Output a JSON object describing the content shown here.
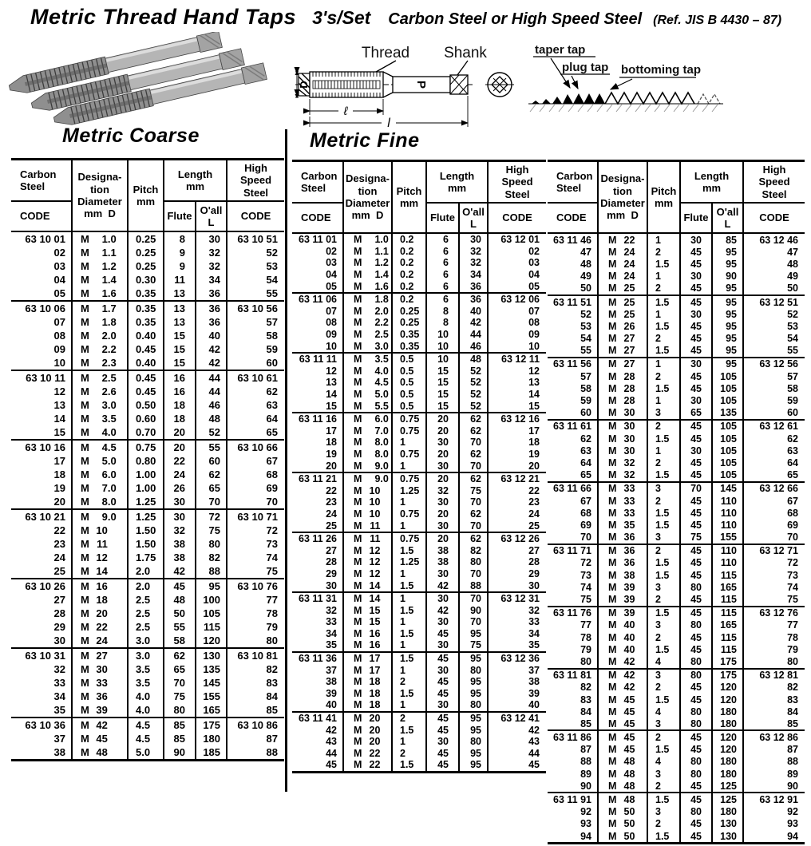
{
  "page": {
    "title": "Metric Thread Hand Taps",
    "set_label": "3's/Set",
    "materials": "Carbon Steel or  High Speed Steel",
    "reference": "(Ref. JIS B 4430 – 87)"
  },
  "columns": {
    "carbon": "Carbon\nSteel",
    "code": "CODE",
    "designation": "Designa-\ntion\nDiameter\nmm  D",
    "pitch": "Pitch\nmm",
    "length": "Length\nmm",
    "flute": "Flute",
    "oall": "O'all\nL",
    "hss": "High\nSpeed\nSteel"
  },
  "diagram": {
    "thread": "Thread",
    "shank": "Shank",
    "dim_d": "D",
    "dim_p": "P",
    "dim_thread_length": "ℓ",
    "dim_overall_length": "l"
  },
  "tap_types": {
    "taper": "taper tap",
    "plug": "plug tap",
    "bottoming": "bottoming tap"
  },
  "sections": {
    "coarse": {
      "heading": "Metric Coarse",
      "groups": [
        [
          [
            "63 10 01",
            "1.0",
            "0.25",
            "8",
            "30",
            "63 10 51"
          ],
          [
            "02",
            "1.1",
            "0.25",
            "9",
            "32",
            "52"
          ],
          [
            "03",
            "1.2",
            "0.25",
            "9",
            "32",
            "53"
          ],
          [
            "04",
            "1.4",
            "0.30",
            "11",
            "34",
            "54"
          ],
          [
            "05",
            "1.6",
            "0.35",
            "13",
            "36",
            "55"
          ]
        ],
        [
          [
            "63 10 06",
            "1.7",
            "0.35",
            "13",
            "36",
            "63 10 56"
          ],
          [
            "07",
            "1.8",
            "0.35",
            "13",
            "36",
            "57"
          ],
          [
            "08",
            "2.0",
            "0.40",
            "15",
            "40",
            "58"
          ],
          [
            "09",
            "2.2",
            "0.45",
            "15",
            "42",
            "59"
          ],
          [
            "10",
            "2.3",
            "0.40",
            "15",
            "42",
            "60"
          ]
        ],
        [
          [
            "63 10 11",
            "2.5",
            "0.45",
            "16",
            "44",
            "63 10 61"
          ],
          [
            "12",
            "2.6",
            "0.45",
            "16",
            "44",
            "62"
          ],
          [
            "13",
            "3.0",
            "0.50",
            "18",
            "46",
            "63"
          ],
          [
            "14",
            "3.5",
            "0.60",
            "18",
            "48",
            "64"
          ],
          [
            "15",
            "4.0",
            "0.70",
            "20",
            "52",
            "65"
          ]
        ],
        [
          [
            "63 10 16",
            "4.5",
            "0.75",
            "20",
            "55",
            "63 10 66"
          ],
          [
            "17",
            "5.0",
            "0.80",
            "22",
            "60",
            "67"
          ],
          [
            "18",
            "6.0",
            "1.00",
            "24",
            "62",
            "68"
          ],
          [
            "19",
            "7.0",
            "1.00",
            "26",
            "65",
            "69"
          ],
          [
            "20",
            "8.0",
            "1.25",
            "30",
            "70",
            "70"
          ]
        ],
        [
          [
            "63 10 21",
            "9.0",
            "1.25",
            "30",
            "72",
            "63 10 71"
          ],
          [
            "22",
            "10",
            "1.50",
            "32",
            "75",
            "72"
          ],
          [
            "23",
            "11",
            "1.50",
            "38",
            "80",
            "73"
          ],
          [
            "24",
            "12",
            "1.75",
            "38",
            "82",
            "74"
          ],
          [
            "25",
            "14",
            "2.0",
            "42",
            "88",
            "75"
          ]
        ],
        [
          [
            "63 10 26",
            "16",
            "2.0",
            "45",
            "95",
            "63 10 76"
          ],
          [
            "27",
            "18",
            "2.5",
            "48",
            "100",
            "77"
          ],
          [
            "28",
            "20",
            "2.5",
            "50",
            "105",
            "78"
          ],
          [
            "29",
            "22",
            "2.5",
            "55",
            "115",
            "79"
          ],
          [
            "30",
            "24",
            "3.0",
            "58",
            "120",
            "80"
          ]
        ],
        [
          [
            "63 10 31",
            "27",
            "3.0",
            "62",
            "130",
            "63 10 81"
          ],
          [
            "32",
            "30",
            "3.5",
            "65",
            "135",
            "82"
          ],
          [
            "33",
            "33",
            "3.5",
            "70",
            "145",
            "83"
          ],
          [
            "34",
            "36",
            "4.0",
            "75",
            "155",
            "84"
          ],
          [
            "35",
            "39",
            "4.0",
            "80",
            "165",
            "85"
          ]
        ],
        [
          [
            "63 10 36",
            "42",
            "4.5",
            "85",
            "175",
            "63 10 86"
          ],
          [
            "37",
            "45",
            "4.5",
            "85",
            "180",
            "87"
          ],
          [
            "38",
            "48",
            "5.0",
            "90",
            "185",
            "88"
          ]
        ]
      ]
    },
    "fine": {
      "heading": "Metric Fine",
      "left_groups": [
        [
          [
            "63 11 01",
            "1.0",
            "0.2",
            "6",
            "30",
            "63 12 01"
          ],
          [
            "02",
            "1.1",
            "0.2",
            "6",
            "32",
            "02"
          ],
          [
            "03",
            "1.2",
            "0.2",
            "6",
            "32",
            "03"
          ],
          [
            "04",
            "1.4",
            "0.2",
            "6",
            "34",
            "04"
          ],
          [
            "05",
            "1.6",
            "0.2",
            "6",
            "36",
            "05"
          ]
        ],
        [
          [
            "63 11 06",
            "1.8",
            "0.2",
            "6",
            "36",
            "63 12 06"
          ],
          [
            "07",
            "2.0",
            "0.25",
            "8",
            "40",
            "07"
          ],
          [
            "08",
            "2.2",
            "0.25",
            "8",
            "42",
            "08"
          ],
          [
            "09",
            "2.5",
            "0.35",
            "10",
            "44",
            "09"
          ],
          [
            "10",
            "3.0",
            "0.35",
            "10",
            "46",
            "10"
          ]
        ],
        [
          [
            "63 11 11",
            "3.5",
            "0.5",
            "10",
            "48",
            "63 12 11"
          ],
          [
            "12",
            "4.0",
            "0.5",
            "15",
            "52",
            "12"
          ],
          [
            "13",
            "4.5",
            "0.5",
            "15",
            "52",
            "13"
          ],
          [
            "14",
            "5.0",
            "0.5",
            "15",
            "52",
            "14"
          ],
          [
            "15",
            "5.5",
            "0.5",
            "15",
            "52",
            "15"
          ]
        ],
        [
          [
            "63 11 16",
            "6.0",
            "0.75",
            "20",
            "62",
            "63 12 16"
          ],
          [
            "17",
            "7.0",
            "0.75",
            "20",
            "62",
            "17"
          ],
          [
            "18",
            "8.0",
            "1",
            "30",
            "70",
            "18"
          ],
          [
            "19",
            "8.0",
            "0.75",
            "20",
            "62",
            "19"
          ],
          [
            "20",
            "9.0",
            "1",
            "30",
            "70",
            "20"
          ]
        ],
        [
          [
            "63 11 21",
            "9.0",
            "0.75",
            "20",
            "62",
            "63 12 21"
          ],
          [
            "22",
            "10",
            "1.25",
            "32",
            "75",
            "22"
          ],
          [
            "23",
            "10",
            "1",
            "30",
            "70",
            "23"
          ],
          [
            "24",
            "10",
            "0.75",
            "20",
            "62",
            "24"
          ],
          [
            "25",
            "11",
            "1",
            "30",
            "70",
            "25"
          ]
        ],
        [
          [
            "63 11 26",
            "11",
            "0.75",
            "20",
            "62",
            "63 12 26"
          ],
          [
            "27",
            "12",
            "1.5",
            "38",
            "82",
            "27"
          ],
          [
            "28",
            "12",
            "1.25",
            "38",
            "80",
            "28"
          ],
          [
            "29",
            "12",
            "1",
            "30",
            "70",
            "29"
          ],
          [
            "30",
            "14",
            "1.5",
            "42",
            "88",
            "30"
          ]
        ],
        [
          [
            "63 11 31",
            "14",
            "1",
            "30",
            "70",
            "63 12 31"
          ],
          [
            "32",
            "15",
            "1.5",
            "42",
            "90",
            "32"
          ],
          [
            "33",
            "15",
            "1",
            "30",
            "70",
            "33"
          ],
          [
            "34",
            "16",
            "1.5",
            "45",
            "95",
            "34"
          ],
          [
            "35",
            "16",
            "1",
            "30",
            "75",
            "35"
          ]
        ],
        [
          [
            "63 11 36",
            "17",
            "1.5",
            "45",
            "95",
            "63 12 36"
          ],
          [
            "37",
            "17",
            "1",
            "30",
            "80",
            "37"
          ],
          [
            "38",
            "18",
            "2",
            "45",
            "95",
            "38"
          ],
          [
            "39",
            "18",
            "1.5",
            "45",
            "95",
            "39"
          ],
          [
            "40",
            "18",
            "1",
            "30",
            "80",
            "40"
          ]
        ],
        [
          [
            "63 11 41",
            "20",
            "2",
            "45",
            "95",
            "63 12 41"
          ],
          [
            "42",
            "20",
            "1.5",
            "45",
            "95",
            "42"
          ],
          [
            "43",
            "20",
            "1",
            "30",
            "80",
            "43"
          ],
          [
            "44",
            "22",
            "2",
            "45",
            "95",
            "44"
          ],
          [
            "45",
            "22",
            "1.5",
            "45",
            "95",
            "45"
          ]
        ]
      ],
      "right_groups": [
        [
          [
            "63 11 46",
            "22",
            "1",
            "30",
            "85",
            "63 12 46"
          ],
          [
            "47",
            "24",
            "2",
            "45",
            "95",
            "47"
          ],
          [
            "48",
            "24",
            "1.5",
            "45",
            "95",
            "48"
          ],
          [
            "49",
            "24",
            "1",
            "30",
            "90",
            "49"
          ],
          [
            "50",
            "25",
            "2",
            "45",
            "95",
            "50"
          ]
        ],
        [
          [
            "63 11 51",
            "25",
            "1.5",
            "45",
            "95",
            "63 12 51"
          ],
          [
            "52",
            "25",
            "1",
            "30",
            "95",
            "52"
          ],
          [
            "53",
            "26",
            "1.5",
            "45",
            "95",
            "53"
          ],
          [
            "54",
            "27",
            "2",
            "45",
            "95",
            "54"
          ],
          [
            "55",
            "27",
            "1.5",
            "45",
            "95",
            "55"
          ]
        ],
        [
          [
            "63 11 56",
            "27",
            "1",
            "30",
            "95",
            "63 12 56"
          ],
          [
            "57",
            "28",
            "2",
            "45",
            "105",
            "57"
          ],
          [
            "58",
            "28",
            "1.5",
            "45",
            "105",
            "58"
          ],
          [
            "59",
            "28",
            "1",
            "30",
            "105",
            "59"
          ],
          [
            "60",
            "30",
            "3",
            "65",
            "135",
            "60"
          ]
        ],
        [
          [
            "63 11 61",
            "30",
            "2",
            "45",
            "105",
            "63 12 61"
          ],
          [
            "62",
            "30",
            "1.5",
            "45",
            "105",
            "62"
          ],
          [
            "63",
            "30",
            "1",
            "30",
            "105",
            "63"
          ],
          [
            "64",
            "32",
            "2",
            "45",
            "105",
            "64"
          ],
          [
            "65",
            "32",
            "1.5",
            "45",
            "105",
            "65"
          ]
        ],
        [
          [
            "63 11 66",
            "33",
            "3",
            "70",
            "145",
            "63 12 66"
          ],
          [
            "67",
            "33",
            "2",
            "45",
            "110",
            "67"
          ],
          [
            "68",
            "33",
            "1.5",
            "45",
            "110",
            "68"
          ],
          [
            "69",
            "35",
            "1.5",
            "45",
            "110",
            "69"
          ],
          [
            "70",
            "36",
            "3",
            "75",
            "155",
            "70"
          ]
        ],
        [
          [
            "63 11 71",
            "36",
            "2",
            "45",
            "110",
            "63 12 71"
          ],
          [
            "72",
            "36",
            "1.5",
            "45",
            "110",
            "72"
          ],
          [
            "73",
            "38",
            "1.5",
            "45",
            "115",
            "73"
          ],
          [
            "74",
            "39",
            "3",
            "80",
            "165",
            "74"
          ],
          [
            "75",
            "39",
            "2",
            "45",
            "115",
            "75"
          ]
        ],
        [
          [
            "63 11 76",
            "39",
            "1.5",
            "45",
            "115",
            "63 12 76"
          ],
          [
            "77",
            "40",
            "3",
            "80",
            "165",
            "77"
          ],
          [
            "78",
            "40",
            "2",
            "45",
            "115",
            "78"
          ],
          [
            "79",
            "40",
            "1.5",
            "45",
            "115",
            "79"
          ],
          [
            "80",
            "42",
            "4",
            "80",
            "175",
            "80"
          ]
        ],
        [
          [
            "63 11 81",
            "42",
            "3",
            "80",
            "175",
            "63 12 81"
          ],
          [
            "82",
            "42",
            "2",
            "45",
            "120",
            "82"
          ],
          [
            "83",
            "45",
            "1.5",
            "45",
            "120",
            "83"
          ],
          [
            "84",
            "45",
            "4",
            "80",
            "180",
            "84"
          ],
          [
            "85",
            "45",
            "3",
            "80",
            "180",
            "85"
          ]
        ],
        [
          [
            "63 11 86",
            "45",
            "2",
            "45",
            "120",
            "63 12 86"
          ],
          [
            "87",
            "45",
            "1.5",
            "45",
            "120",
            "87"
          ],
          [
            "88",
            "48",
            "4",
            "80",
            "180",
            "88"
          ],
          [
            "89",
            "48",
            "3",
            "80",
            "180",
            "89"
          ],
          [
            "90",
            "48",
            "2",
            "45",
            "125",
            "90"
          ]
        ],
        [
          [
            "63 11 91",
            "48",
            "1.5",
            "45",
            "125",
            "63 12 91"
          ],
          [
            "92",
            "50",
            "3",
            "80",
            "180",
            "92"
          ],
          [
            "93",
            "50",
            "2",
            "45",
            "130",
            "93"
          ],
          [
            "94",
            "50",
            "1.5",
            "45",
            "130",
            "94"
          ]
        ]
      ]
    }
  }
}
